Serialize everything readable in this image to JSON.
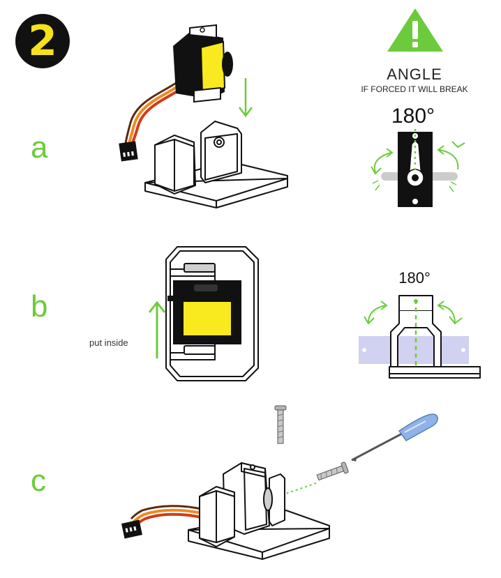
{
  "step": {
    "number": "2"
  },
  "substeps": {
    "a": "a",
    "b": "b",
    "c": "c"
  },
  "warning": {
    "title": "ANGLE",
    "subtitle": "IF FORCED IT WILL BREAK"
  },
  "angles": {
    "a": "180°",
    "b": "180°"
  },
  "instructions": {
    "put_inside": "put inside"
  },
  "icons": [
    "warning-triangle-icon",
    "arrow-down-icon",
    "arrow-up-icon",
    "rotate-arrow-icon",
    "screwdriver-icon",
    "screw-icon"
  ],
  "colors": {
    "accent_green": "#6ccb3c",
    "servo_yellow": "#f8ea1e",
    "badge_black": "#111111",
    "badge_yellow": "#f6e11a",
    "bracket_lavender": "#c9c9ee",
    "wire_orange": "#f08a1f",
    "wire_red": "#d43a1a",
    "wire_brown": "#5a2a12",
    "screwdriver_blue": "#8fb2e8"
  }
}
